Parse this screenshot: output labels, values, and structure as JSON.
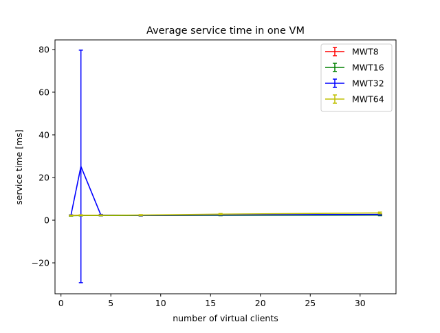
{
  "chart_data": {
    "type": "line",
    "title": "Average service time in one VM",
    "xlabel": "number of virtual clients",
    "ylabel": "service time [ms]",
    "xlim": [
      -0.6,
      33.6
    ],
    "ylim": [
      -34.5,
      84.5
    ],
    "x_ticks": [
      0,
      5,
      10,
      15,
      20,
      25,
      30
    ],
    "y_ticks": [
      -20,
      0,
      20,
      40,
      60,
      80
    ],
    "y_tick_labels": [
      "−20",
      "0",
      "20",
      "40",
      "60",
      "80"
    ],
    "grid": false,
    "legend_position": "top-right",
    "series": [
      {
        "name": "MWT8",
        "color": "#ff0000",
        "x": [
          1,
          2,
          4,
          8,
          16,
          32
        ],
        "y": [
          2.2,
          2.3,
          2.3,
          2.2,
          2.4,
          2.5
        ],
        "err": [
          0.2,
          0.2,
          0.2,
          0.2,
          0.2,
          0.3
        ]
      },
      {
        "name": "MWT16",
        "color": "#008000",
        "x": [
          1,
          2,
          4,
          8,
          16,
          32
        ],
        "y": [
          2.1,
          2.2,
          2.2,
          2.2,
          2.3,
          2.4
        ],
        "err": [
          0.2,
          0.2,
          0.2,
          0.2,
          0.2,
          0.3
        ]
      },
      {
        "name": "MWT32",
        "color": "#0000ff",
        "x": [
          1,
          2,
          4,
          8,
          16,
          32
        ],
        "y": [
          2.3,
          25.2,
          2.4,
          2.3,
          2.5,
          2.7
        ],
        "err": [
          0.2,
          54.5,
          0.3,
          0.2,
          0.2,
          0.3
        ]
      },
      {
        "name": "MWT64",
        "color": "#bfbf00",
        "x": [
          1,
          2,
          4,
          8,
          16,
          32
        ],
        "y": [
          2.2,
          2.3,
          2.3,
          2.4,
          2.8,
          3.4
        ],
        "err": [
          0.2,
          0.2,
          0.2,
          0.2,
          0.3,
          0.4
        ]
      }
    ]
  }
}
